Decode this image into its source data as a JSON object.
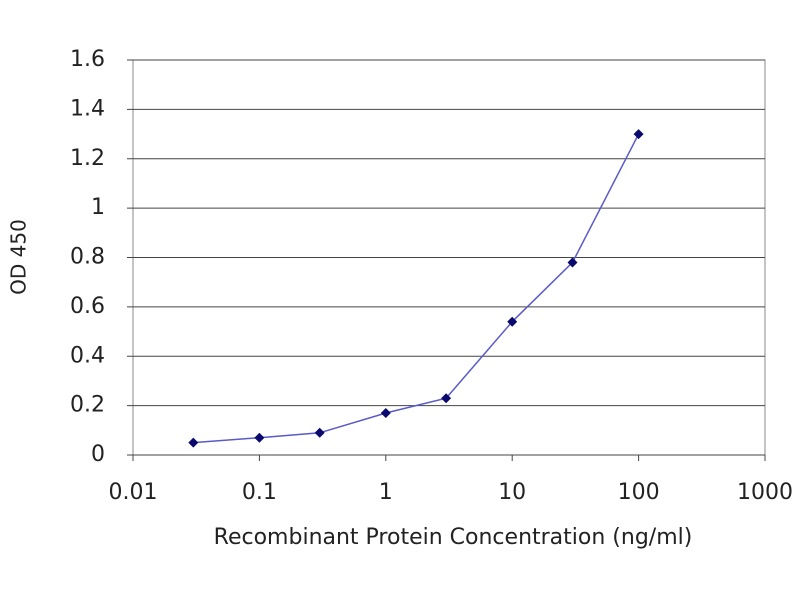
{
  "chart_data": {
    "type": "line",
    "x_label": "Recombinant Protein Concentration (ng/ml)",
    "y_label": "OD 450",
    "x": [
      0.03,
      0.1,
      0.3,
      1,
      3,
      10,
      30,
      100
    ],
    "series": [
      {
        "color": "#5a5ac8",
        "marker_color": "#0a0a6e",
        "values": [
          0.05,
          0.07,
          0.09,
          0.17,
          0.23,
          0.54,
          0.78,
          1.3
        ]
      }
    ],
    "xscale": "log",
    "xlim": [
      0.01,
      1000
    ],
    "xticks": [
      0.01,
      0.1,
      1,
      10,
      100,
      1000
    ],
    "ylim": [
      0,
      1.6
    ],
    "yticks": [
      0,
      0.2,
      0.4,
      0.6,
      0.8,
      1,
      1.2,
      1.4,
      1.6
    ],
    "grid": true
  }
}
